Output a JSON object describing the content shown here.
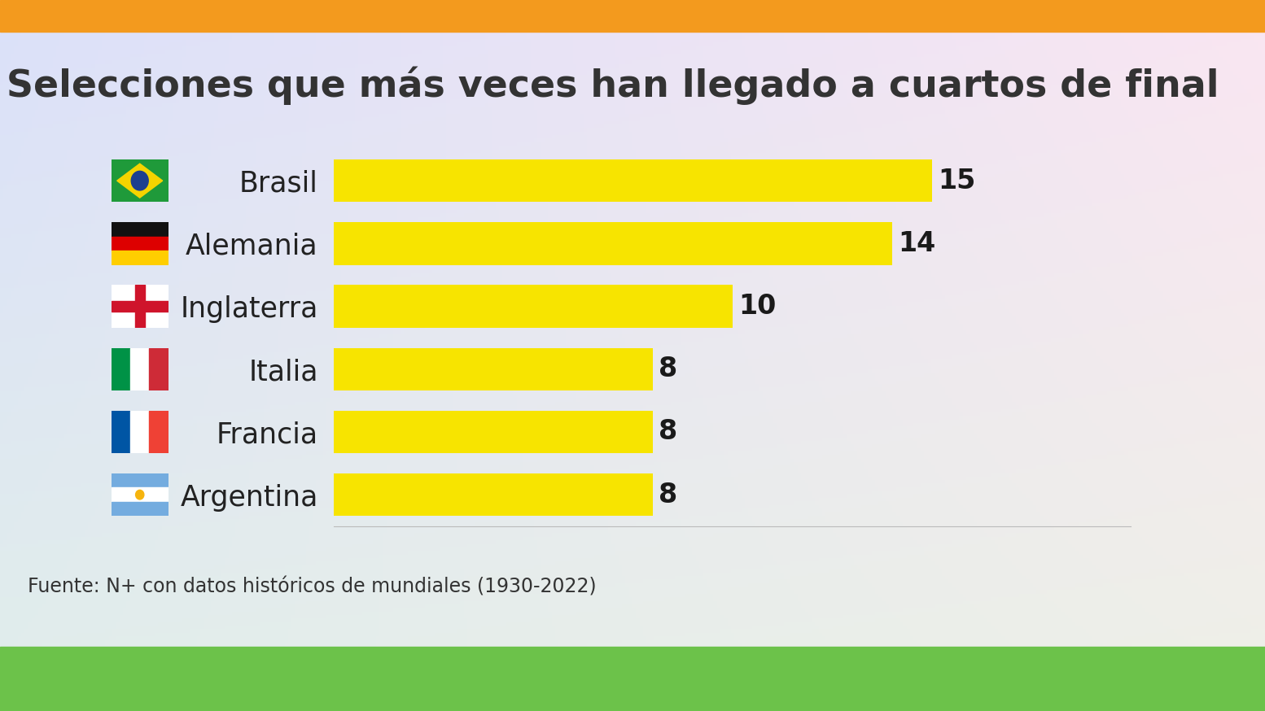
{
  "chart_data": {
    "type": "bar",
    "orientation": "horizontal",
    "title": "Selecciones que más veces han llegado a cuartos de final",
    "source": "Fuente: N+ con datos históricos de mundiales (1930-2022)",
    "categories": [
      "Brasil",
      "Alemania",
      "Inglaterra",
      "Italia",
      "Francia",
      "Argentina"
    ],
    "values": [
      15,
      14,
      10,
      8,
      8,
      8
    ],
    "color": "#f7e400",
    "xlim": [
      0,
      20
    ],
    "data_labels": true,
    "tick_labels": "y",
    "grid": false
  }
}
